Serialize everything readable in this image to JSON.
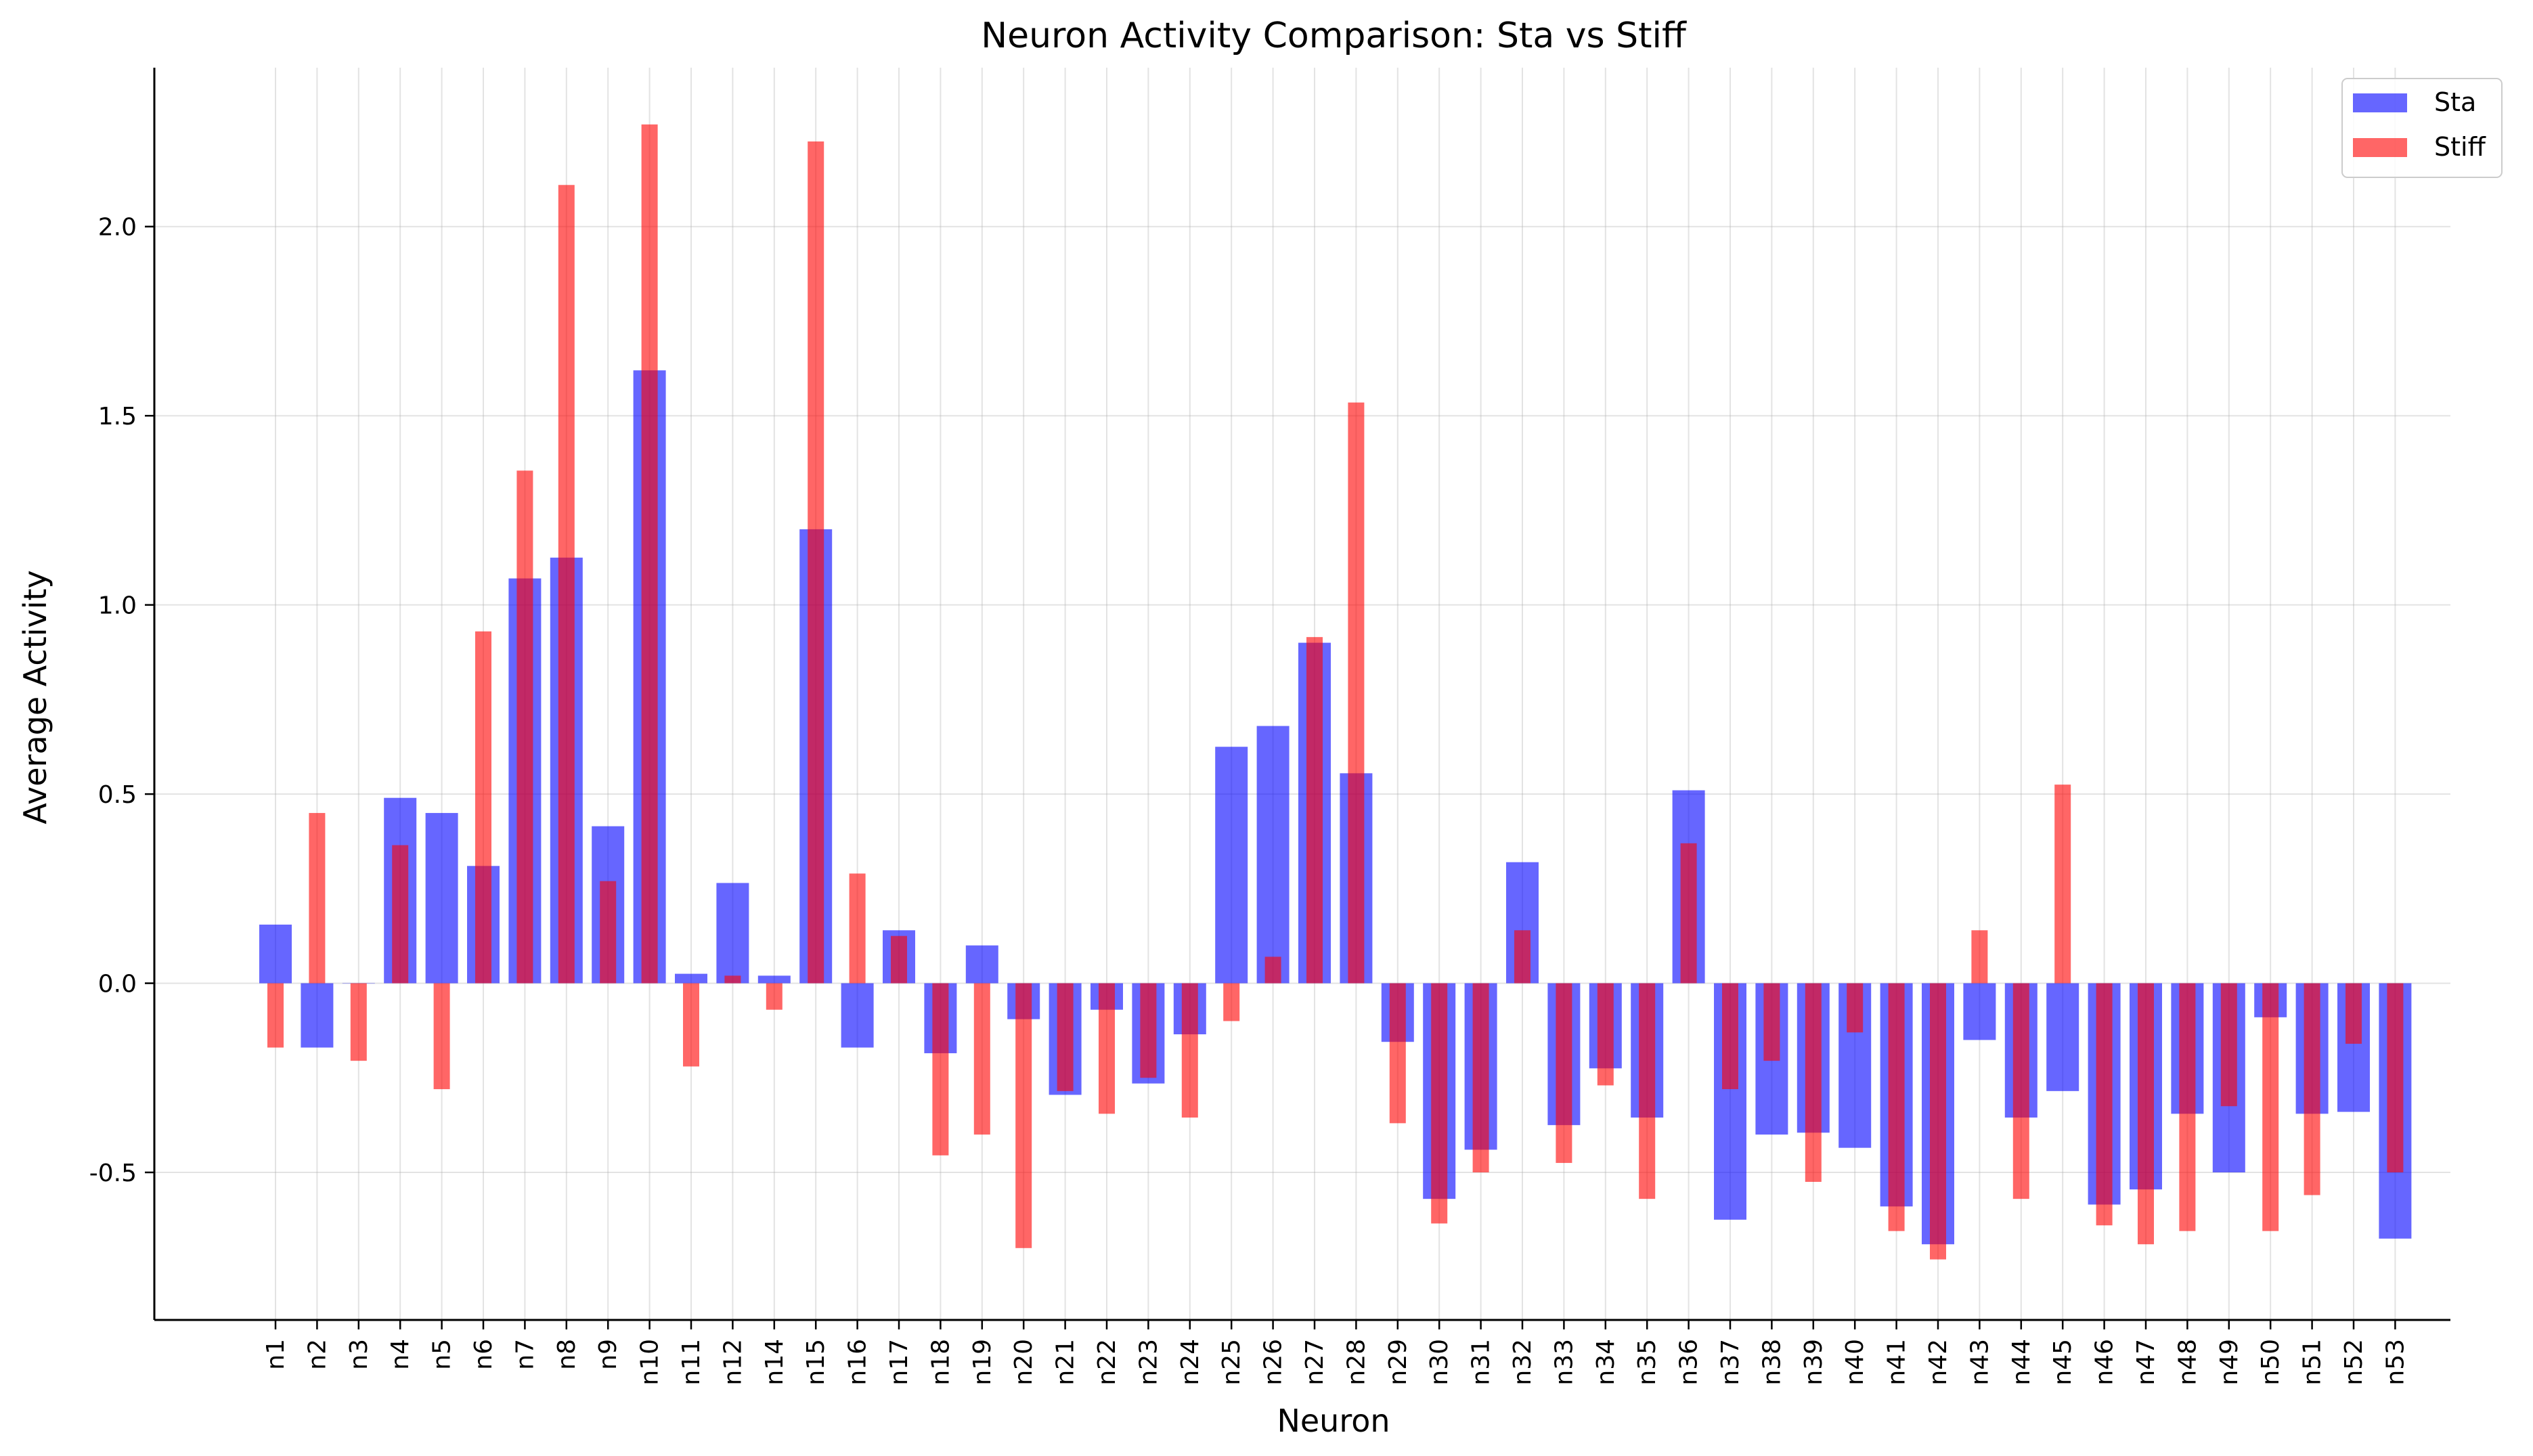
{
  "chart_data": {
    "type": "bar",
    "title": "Neuron Activity Comparison: Sta vs Stiff",
    "xlabel": "Neuron",
    "ylabel": "Average Activity",
    "ylim": [
      -0.89,
      2.42
    ],
    "yticks": [
      "-0.5",
      "0.0",
      "0.5",
      "1.0",
      "1.5",
      "2.0"
    ],
    "grid": true,
    "legend_position": "top-right",
    "categories": [
      "n1",
      "n2",
      "n3",
      "n4",
      "n5",
      "n6",
      "n7",
      "n8",
      "n9",
      "n10",
      "n11",
      "n12",
      "n14",
      "n15",
      "n16",
      "n17",
      "n18",
      "n19",
      "n20",
      "n21",
      "n22",
      "n23",
      "n24",
      "n25",
      "n26",
      "n27",
      "n28",
      "n29",
      "n30",
      "n31",
      "n32",
      "n33",
      "n34",
      "n35",
      "n36",
      "n37",
      "n38",
      "n39",
      "n40",
      "n41",
      "n42",
      "n43",
      "n44",
      "n45",
      "n46",
      "n47",
      "n48",
      "n49",
      "n50",
      "n51",
      "n52",
      "n53"
    ],
    "series": [
      {
        "name": "Sta",
        "color": "#0000ff",
        "values": [
          0.155,
          -0.17,
          0.0,
          0.49,
          0.45,
          0.31,
          1.07,
          1.125,
          0.415,
          1.62,
          0.025,
          0.265,
          0.02,
          1.2,
          -0.17,
          0.14,
          -0.185,
          0.1,
          -0.095,
          -0.295,
          -0.07,
          -0.265,
          -0.135,
          0.625,
          0.68,
          0.9,
          0.555,
          -0.155,
          -0.57,
          -0.44,
          0.32,
          -0.375,
          -0.225,
          -0.355,
          0.51,
          -0.625,
          -0.4,
          -0.395,
          -0.435,
          -0.59,
          -0.69,
          -0.15,
          -0.355,
          -0.285,
          -0.585,
          -0.545,
          -0.345,
          -0.5,
          -0.09,
          -0.345,
          -0.34,
          -0.675
        ]
      },
      {
        "name": "Stiff",
        "color": "#ff0000",
        "values": [
          -0.17,
          0.45,
          -0.205,
          0.365,
          -0.28,
          0.93,
          1.355,
          2.11,
          0.27,
          2.27,
          -0.22,
          0.02,
          -0.07,
          2.225,
          0.29,
          0.125,
          -0.455,
          -0.4,
          -0.7,
          -0.285,
          -0.345,
          -0.25,
          -0.355,
          -0.1,
          0.07,
          0.915,
          1.535,
          -0.37,
          -0.635,
          -0.5,
          0.14,
          -0.475,
          -0.27,
          -0.57,
          0.37,
          -0.28,
          -0.205,
          -0.525,
          -0.13,
          -0.655,
          -0.73,
          0.14,
          -0.57,
          0.525,
          -0.64,
          -0.69,
          -0.655,
          -0.325,
          -0.655,
          -0.56,
          -0.16,
          -0.5
        ]
      }
    ]
  }
}
